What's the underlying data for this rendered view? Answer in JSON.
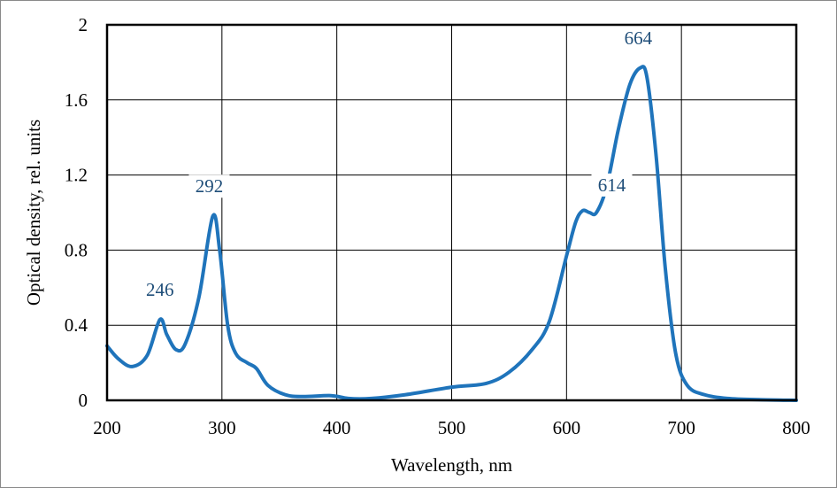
{
  "chart_data": {
    "type": "line",
    "title": "",
    "xlabel": "Wavelength,  nm",
    "ylabel": "Optical density, rel. units",
    "xlim": [
      200,
      800
    ],
    "ylim": [
      0,
      2
    ],
    "xticks": [
      200,
      300,
      400,
      500,
      600,
      700,
      800
    ],
    "yticks": [
      0,
      0.4,
      0.8,
      1.2,
      1.6,
      2
    ],
    "ytick_labels": [
      "0",
      "0.4",
      "0.8",
      "1.2",
      "1.6",
      "2"
    ],
    "grid": true,
    "line_color": "#1f74bb",
    "series": [
      {
        "name": "spectrum",
        "x": [
          200,
          210,
          222,
          235,
          246,
          252,
          260,
          268,
          280,
          292,
          298,
          305,
          312,
          322,
          330,
          340,
          355,
          370,
          395,
          410,
          430,
          460,
          500,
          530,
          550,
          570,
          585,
          600,
          608,
          614,
          620,
          626,
          635,
          645,
          655,
          664,
          670,
          678,
          686,
          695,
          705,
          720,
          740,
          770,
          800
        ],
        "y": [
          0.29,
          0.22,
          0.18,
          0.24,
          0.43,
          0.35,
          0.27,
          0.3,
          0.55,
          0.98,
          0.8,
          0.4,
          0.25,
          0.2,
          0.17,
          0.08,
          0.03,
          0.02,
          0.025,
          0.01,
          0.01,
          0.03,
          0.07,
          0.09,
          0.15,
          0.27,
          0.42,
          0.77,
          0.95,
          1.01,
          1.0,
          1.0,
          1.14,
          1.44,
          1.68,
          1.77,
          1.72,
          1.3,
          0.7,
          0.25,
          0.08,
          0.03,
          0.01,
          0.003,
          0.0
        ]
      }
    ],
    "annotations": [
      {
        "text": "246",
        "x": 246,
        "y": 0.43
      },
      {
        "text": "292",
        "x": 292,
        "y": 0.98
      },
      {
        "text": "614",
        "x": 614,
        "y": 1.01
      },
      {
        "text": "664",
        "x": 664,
        "y": 1.77
      }
    ]
  }
}
